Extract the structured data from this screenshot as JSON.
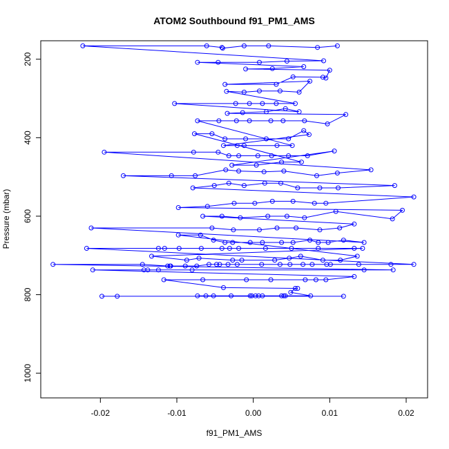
{
  "chart_data": {
    "type": "line",
    "title": "ATOM2 Southbound f91_PM1_AMS",
    "xlabel": "f91_PM1_AMS",
    "ylabel": "Pressure (mbar)",
    "xlim": [
      -0.0278,
      0.0228
    ],
    "ylim": [
      1063,
      153
    ],
    "y_inverted": true,
    "x_ticks": [
      -0.02,
      -0.01,
      0.0,
      0.01,
      0.02
    ],
    "x_tick_labels": [
      "-0.02",
      "-0.01",
      "0.00",
      "0.01",
      "0.02"
    ],
    "y_ticks": [
      200,
      400,
      600,
      800,
      1000
    ],
    "y_tick_labels": [
      "200",
      "400",
      "600",
      "800",
      "1000"
    ],
    "grid": false,
    "legend": "none",
    "series": [
      {
        "color": "#0000ff",
        "marker": "open-circle",
        "points": [
          [
            -0.0198,
            804
          ],
          [
            -0.0178,
            804
          ],
          [
            0.0118,
            804
          ],
          [
            -0.0073,
            803
          ],
          [
            -0.0062,
            803
          ],
          [
            -0.0052,
            803
          ],
          [
            -0.0029,
            803
          ],
          [
            -0.0004,
            803
          ],
          [
            -0.0002,
            803
          ],
          [
            0.0003,
            803
          ],
          [
            0.0007,
            803
          ],
          [
            0.0012,
            803
          ],
          [
            0.0037,
            803
          ],
          [
            0.004,
            803
          ],
          [
            0.0042,
            803
          ],
          [
            0.0075,
            803
          ],
          [
            0.0049,
            794
          ],
          [
            0.0055,
            784
          ],
          [
            0.0058,
            784
          ],
          [
            -0.0039,
            782
          ],
          [
            -0.0117,
            762
          ],
          [
            -0.0066,
            762
          ],
          [
            -0.0009,
            762
          ],
          [
            0.0023,
            762
          ],
          [
            0.0068,
            762
          ],
          [
            0.0082,
            762
          ],
          [
            0.0095,
            762
          ],
          [
            0.0132,
            754
          ],
          [
            -0.021,
            737
          ],
          [
            -0.0143,
            737
          ],
          [
            -0.0138,
            737
          ],
          [
            -0.0124,
            737
          ],
          [
            -0.008,
            737
          ],
          [
            0.0145,
            737
          ],
          [
            0.0183,
            737
          ],
          [
            -0.0262,
            723
          ],
          [
            -0.0145,
            723
          ],
          [
            -0.0112,
            727
          ],
          [
            -0.0109,
            727
          ],
          [
            -0.0108,
            727
          ],
          [
            -0.0089,
            727
          ],
          [
            -0.0074,
            727
          ],
          [
            -0.0058,
            723
          ],
          [
            -0.0048,
            723
          ],
          [
            -0.0044,
            723
          ],
          [
            -0.0033,
            723
          ],
          [
            -0.0021,
            723
          ],
          [
            0.0011,
            723
          ],
          [
            0.0035,
            723
          ],
          [
            0.0048,
            723
          ],
          [
            0.0065,
            723
          ],
          [
            0.0077,
            723
          ],
          [
            0.0096,
            723
          ],
          [
            0.0101,
            723
          ],
          [
            0.0138,
            723
          ],
          [
            0.018,
            723
          ],
          [
            0.021,
            723
          ],
          [
            -0.0218,
            682
          ],
          [
            -0.0124,
            682
          ],
          [
            -0.0116,
            682
          ],
          [
            -0.0097,
            682
          ],
          [
            -0.0068,
            682
          ],
          [
            -0.0041,
            682
          ],
          [
            -0.0031,
            682
          ],
          [
            -0.0019,
            682
          ],
          [
            0.0016,
            682
          ],
          [
            0.005,
            682
          ],
          [
            0.0085,
            682
          ],
          [
            0.0132,
            682
          ],
          [
            0.0143,
            682
          ],
          [
            -0.0133,
            702
          ],
          [
            -0.0087,
            712
          ],
          [
            -0.0071,
            707
          ],
          [
            -0.0027,
            712
          ],
          [
            -0.0015,
            712
          ],
          [
            0.0028,
            712
          ],
          [
            0.0047,
            707
          ],
          [
            0.0062,
            702
          ],
          [
            0.0091,
            712
          ],
          [
            0.0114,
            712
          ],
          [
            0.0136,
            702
          ],
          [
            -0.0098,
            648
          ],
          [
            -0.0069,
            648
          ],
          [
            -0.0052,
            661
          ],
          [
            -0.0037,
            667
          ],
          [
            -0.0027,
            667
          ],
          [
            -0.0004,
            667
          ],
          [
            0.0012,
            667
          ],
          [
            0.0037,
            667
          ],
          [
            0.0052,
            667
          ],
          [
            0.0074,
            661
          ],
          [
            0.0085,
            667
          ],
          [
            0.0098,
            667
          ],
          [
            0.0118,
            661
          ],
          [
            0.0145,
            667
          ],
          [
            -0.0212,
            630
          ],
          [
            -0.0054,
            630
          ],
          [
            -0.0026,
            635
          ],
          [
            0.0008,
            635
          ],
          [
            0.0031,
            630
          ],
          [
            0.0056,
            630
          ],
          [
            0.0087,
            635
          ],
          [
            0.0113,
            630
          ],
          [
            0.0132,
            620
          ],
          [
            -0.0066,
            600
          ],
          [
            -0.0041,
            600
          ],
          [
            -0.0017,
            604
          ],
          [
            0.0019,
            600
          ],
          [
            0.0044,
            600
          ],
          [
            0.0067,
            604
          ],
          [
            0.0108,
            588
          ],
          [
            0.0182,
            607
          ],
          [
            0.0195,
            585
          ],
          [
            -0.0098,
            578
          ],
          [
            -0.006,
            575
          ],
          [
            -0.0025,
            567
          ],
          [
            0.0002,
            567
          ],
          [
            0.0025,
            562
          ],
          [
            0.0052,
            562
          ],
          [
            0.008,
            567
          ],
          [
            0.0095,
            567
          ],
          [
            0.021,
            551
          ],
          [
            -0.0079,
            528
          ],
          [
            -0.0051,
            522
          ],
          [
            -0.0032,
            516
          ],
          [
            -0.0012,
            522
          ],
          [
            0.0015,
            516
          ],
          [
            0.0036,
            516
          ],
          [
            0.0058,
            528
          ],
          [
            0.0087,
            528
          ],
          [
            0.0111,
            528
          ],
          [
            0.0185,
            522
          ],
          [
            -0.017,
            497
          ],
          [
            -0.0107,
            497
          ],
          [
            -0.0076,
            497
          ],
          [
            -0.0036,
            482
          ],
          [
            -0.0019,
            485
          ],
          [
            0.0014,
            487
          ],
          [
            0.004,
            485
          ],
          [
            0.0083,
            497
          ],
          [
            0.011,
            490
          ],
          [
            0.0154,
            482
          ],
          [
            -0.0195,
            437
          ],
          [
            -0.0078,
            437
          ],
          [
            -0.0046,
            437
          ],
          [
            -0.0032,
            446
          ],
          [
            -0.0019,
            446
          ],
          [
            0.0006,
            446
          ],
          [
            0.0024,
            446
          ],
          [
            0.0046,
            446
          ],
          [
            0.0071,
            446
          ],
          [
            0.0106,
            434
          ],
          [
            -0.0028,
            470
          ],
          [
            0.0004,
            470
          ],
          [
            0.0037,
            462
          ],
          [
            0.0063,
            462
          ],
          [
            -0.0077,
            390
          ],
          [
            -0.0054,
            390
          ],
          [
            -0.0037,
            403
          ],
          [
            -0.001,
            403
          ],
          [
            0.0017,
            403
          ],
          [
            0.0046,
            403
          ],
          [
            0.0066,
            382
          ],
          [
            0.0073,
            392
          ],
          [
            -0.0039,
            420
          ],
          [
            -0.0021,
            420
          ],
          [
            -0.0012,
            420
          ],
          [
            0.0031,
            420
          ],
          [
            0.0051,
            420
          ],
          [
            -0.0073,
            357
          ],
          [
            -0.0045,
            357
          ],
          [
            -0.0022,
            357
          ],
          [
            -0.0005,
            357
          ],
          [
            0.0023,
            357
          ],
          [
            0.0039,
            357
          ],
          [
            0.0067,
            357
          ],
          [
            0.0097,
            365
          ],
          [
            0.0121,
            341
          ],
          [
            -0.0034,
            338
          ],
          [
            -0.0014,
            336
          ],
          [
            0.0017,
            334
          ],
          [
            0.0042,
            326
          ],
          [
            0.006,
            334
          ],
          [
            -0.0103,
            313
          ],
          [
            -0.0023,
            313
          ],
          [
            -0.0005,
            313
          ],
          [
            0.0012,
            313
          ],
          [
            0.003,
            313
          ],
          [
            0.0055,
            313
          ],
          [
            -0.0035,
            282
          ],
          [
            -0.0012,
            284
          ],
          [
            0.0008,
            281
          ],
          [
            0.0035,
            281
          ],
          [
            0.006,
            284
          ],
          [
            0.0074,
            256
          ],
          [
            -0.0037,
            264
          ],
          [
            0.003,
            264
          ],
          [
            0.0052,
            245
          ],
          [
            0.0091,
            246
          ],
          [
            0.0095,
            248
          ],
          [
            0.01,
            228
          ],
          [
            -0.001,
            225
          ],
          [
            0.0025,
            224
          ],
          [
            0.0066,
            219
          ],
          [
            -0.0073,
            208
          ],
          [
            -0.0046,
            208
          ],
          [
            0.0008,
            208
          ],
          [
            0.0044,
            205
          ],
          [
            0.0092,
            204
          ],
          [
            -0.0223,
            166
          ],
          [
            -0.0061,
            166
          ],
          [
            -0.0041,
            170
          ],
          [
            -0.004,
            172
          ],
          [
            -0.0012,
            166
          ],
          [
            0.002,
            166
          ],
          [
            0.0084,
            170
          ],
          [
            0.011,
            166
          ]
        ]
      }
    ]
  }
}
